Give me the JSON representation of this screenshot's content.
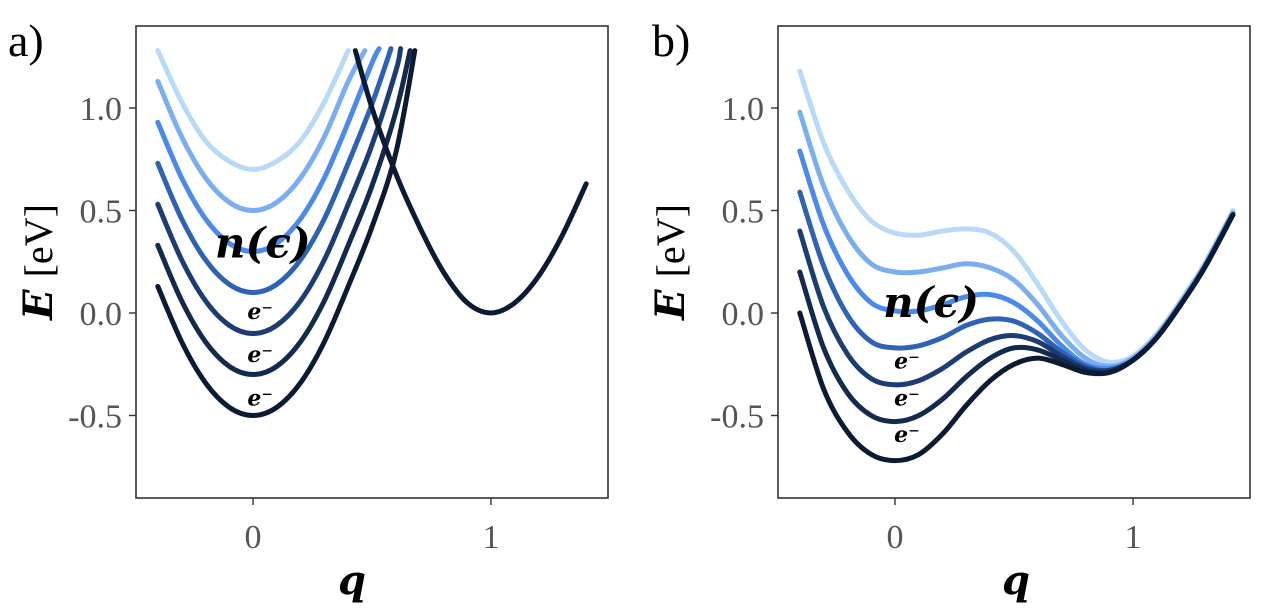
{
  "chart_data": [
    {
      "type": "line",
      "panel_label": "a)",
      "xlabel_var": "q",
      "ylabel_var": "E",
      "ylabel_unit": "[eV]",
      "xlim": [
        -0.5,
        1.5
      ],
      "ylim": [
        -0.9,
        1.3
      ],
      "x_ticks": [
        0,
        1
      ],
      "x_tick_labels": [
        "0",
        "1"
      ],
      "y_ticks": [
        1.0,
        0.5,
        0.0,
        -0.5
      ],
      "y_tick_labels": [
        "1.0",
        "0.5",
        "0.0",
        "-0.5"
      ],
      "colors": [
        "#0c1b33",
        "#13294d",
        "#1d3c74",
        "#2e62b3",
        "#4a8aeb",
        "#7aaeef",
        "#b8d9f7"
      ],
      "series": [
        {
          "color": "#b8d9f7",
          "x": [
            -0.4,
            -0.3,
            -0.2,
            -0.1,
            0,
            0.1,
            0.2,
            0.3,
            0.4
          ],
          "y": [
            1.28,
            1.03,
            0.84,
            0.74,
            0.7,
            0.74,
            0.84,
            1.03,
            1.28
          ]
        },
        {
          "color": "#7aaeef",
          "x": [
            -0.4,
            -0.3,
            -0.2,
            -0.1,
            0,
            0.1,
            0.2,
            0.3,
            0.4,
            0.47
          ],
          "y": [
            1.13,
            0.86,
            0.66,
            0.54,
            0.5,
            0.54,
            0.66,
            0.86,
            1.13,
            1.28
          ]
        },
        {
          "color": "#4a8aeb",
          "x": [
            -0.4,
            -0.3,
            -0.2,
            -0.1,
            0,
            0.1,
            0.2,
            0.3,
            0.4,
            0.5,
            0.53
          ],
          "y": [
            0.93,
            0.66,
            0.46,
            0.34,
            0.3,
            0.34,
            0.46,
            0.66,
            0.93,
            1.22,
            1.29
          ]
        },
        {
          "color": "#2e62b3",
          "x": [
            -0.4,
            -0.3,
            -0.2,
            -0.1,
            0,
            0.1,
            0.2,
            0.3,
            0.4,
            0.5,
            0.58
          ],
          "y": [
            0.73,
            0.46,
            0.26,
            0.14,
            0.1,
            0.14,
            0.26,
            0.46,
            0.73,
            1.02,
            1.29
          ]
        },
        {
          "color": "#1d3c74",
          "x": [
            -0.4,
            -0.3,
            -0.2,
            -0.1,
            0,
            0.1,
            0.2,
            0.3,
            0.4,
            0.5,
            0.6,
            0.62
          ],
          "y": [
            0.53,
            0.26,
            0.06,
            -0.06,
            -0.1,
            -0.06,
            0.06,
            0.26,
            0.53,
            0.82,
            1.18,
            1.29
          ]
        },
        {
          "color": "#13294d",
          "x": [
            -0.4,
            -0.3,
            -0.2,
            -0.1,
            0,
            0.1,
            0.2,
            0.3,
            0.4,
            0.5,
            0.6,
            0.66
          ],
          "y": [
            0.33,
            0.06,
            -0.14,
            -0.26,
            -0.3,
            -0.26,
            -0.14,
            0.06,
            0.33,
            0.62,
            0.98,
            1.28
          ]
        },
        {
          "color": "#0c1b33",
          "x": [
            -0.4,
            -0.3,
            -0.2,
            -0.1,
            0,
            0.1,
            0.2,
            0.3,
            0.4,
            0.5,
            0.6,
            0.68
          ],
          "y": [
            0.13,
            -0.14,
            -0.34,
            -0.46,
            -0.5,
            -0.46,
            -0.34,
            -0.14,
            0.13,
            0.42,
            0.78,
            1.28
          ]
        },
        {
          "color": "#0c1b33",
          "x": [
            0.43,
            0.5,
            0.6,
            0.7,
            0.8,
            0.9,
            1.0,
            1.1,
            1.2,
            1.3,
            1.4
          ],
          "y": [
            1.28,
            1.0,
            0.68,
            0.42,
            0.2,
            0.05,
            0.0,
            0.05,
            0.18,
            0.38,
            0.63
          ]
        }
      ],
      "annotations": [
        {
          "text": "n(ϵ)",
          "x": -0.16,
          "y": 0.27,
          "size": "big"
        },
        {
          "text": "e⁻",
          "x": 0.03,
          "y": -0.03,
          "size": "small"
        },
        {
          "text": "e⁻",
          "x": 0.03,
          "y": -0.24,
          "size": "small"
        },
        {
          "text": "e⁻",
          "x": 0.03,
          "y": -0.45,
          "size": "small"
        }
      ]
    },
    {
      "type": "line",
      "panel_label": "b)",
      "xlabel_var": "q",
      "ylabel_var": "E",
      "ylabel_unit": "[eV]",
      "xlim": [
        -0.5,
        1.5
      ],
      "ylim": [
        -0.9,
        1.3
      ],
      "x_ticks": [
        0,
        1
      ],
      "x_tick_labels": [
        "0",
        "1"
      ],
      "y_ticks": [
        1.0,
        0.5,
        0.0,
        -0.5
      ],
      "y_tick_labels": [
        "1.0",
        "0.5",
        "0.0",
        "-0.5"
      ],
      "series": [
        {
          "color": "#b8d9f7",
          "x": [
            -0.4,
            -0.3,
            -0.2,
            -0.1,
            0.0,
            0.1,
            0.2,
            0.3,
            0.4,
            0.5,
            0.6,
            0.7,
            0.8,
            0.9,
            1.0,
            1.1,
            1.2,
            1.3,
            1.42
          ],
          "y": [
            1.18,
            0.83,
            0.6,
            0.45,
            0.39,
            0.38,
            0.4,
            0.41,
            0.39,
            0.3,
            0.14,
            -0.04,
            -0.18,
            -0.24,
            -0.21,
            -0.1,
            0.06,
            0.24,
            0.5
          ]
        },
        {
          "color": "#7aaeef",
          "x": [
            -0.4,
            -0.3,
            -0.2,
            -0.1,
            0.0,
            0.1,
            0.2,
            0.3,
            0.4,
            0.5,
            0.6,
            0.7,
            0.8,
            0.9,
            1.0,
            1.1,
            1.2,
            1.3,
            1.42
          ],
          "y": [
            0.98,
            0.62,
            0.38,
            0.24,
            0.2,
            0.2,
            0.22,
            0.24,
            0.22,
            0.16,
            0.04,
            -0.11,
            -0.22,
            -0.26,
            -0.22,
            -0.11,
            0.05,
            0.23,
            0.49
          ]
        },
        {
          "color": "#4a8aeb",
          "x": [
            -0.4,
            -0.3,
            -0.2,
            -0.1,
            0.0,
            0.1,
            0.2,
            0.3,
            0.4,
            0.5,
            0.6,
            0.7,
            0.8,
            0.9,
            1.0,
            1.1,
            1.2,
            1.3,
            1.42
          ],
          "y": [
            0.79,
            0.43,
            0.19,
            0.05,
            0.01,
            0.01,
            0.04,
            0.08,
            0.09,
            0.05,
            -0.04,
            -0.16,
            -0.25,
            -0.27,
            -0.23,
            -0.12,
            0.04,
            0.22,
            0.48
          ]
        },
        {
          "color": "#2e62b3",
          "x": [
            -0.4,
            -0.3,
            -0.2,
            -0.1,
            0.0,
            0.1,
            0.2,
            0.3,
            0.4,
            0.5,
            0.6,
            0.7,
            0.8,
            0.9,
            1.0,
            1.1,
            1.2,
            1.3,
            1.42
          ],
          "y": [
            0.59,
            0.23,
            -0.01,
            -0.14,
            -0.17,
            -0.16,
            -0.12,
            -0.06,
            -0.03,
            -0.04,
            -0.1,
            -0.19,
            -0.26,
            -0.28,
            -0.23,
            -0.12,
            0.04,
            0.22,
            0.48
          ]
        },
        {
          "color": "#1d3c74",
          "x": [
            -0.4,
            -0.3,
            -0.2,
            -0.1,
            0.0,
            0.1,
            0.2,
            0.3,
            0.4,
            0.5,
            0.6,
            0.7,
            0.8,
            0.9,
            1.0,
            1.1,
            1.2,
            1.3,
            1.42
          ],
          "y": [
            0.4,
            0.03,
            -0.2,
            -0.32,
            -0.35,
            -0.33,
            -0.27,
            -0.19,
            -0.13,
            -0.11,
            -0.14,
            -0.21,
            -0.27,
            -0.28,
            -0.23,
            -0.12,
            0.04,
            0.22,
            0.48
          ]
        },
        {
          "color": "#13294d",
          "x": [
            -0.4,
            -0.3,
            -0.2,
            -0.1,
            0.0,
            0.1,
            0.2,
            0.3,
            0.4,
            0.5,
            0.6,
            0.7,
            0.8,
            0.9,
            1.0,
            1.1,
            1.2,
            1.3,
            1.42
          ],
          "y": [
            0.2,
            -0.17,
            -0.39,
            -0.5,
            -0.53,
            -0.5,
            -0.42,
            -0.31,
            -0.22,
            -0.17,
            -0.18,
            -0.23,
            -0.28,
            -0.29,
            -0.23,
            -0.12,
            0.04,
            0.22,
            0.48
          ]
        },
        {
          "color": "#0c1b33",
          "x": [
            -0.4,
            -0.3,
            -0.2,
            -0.1,
            0.0,
            0.1,
            0.2,
            0.3,
            0.4,
            0.5,
            0.6,
            0.7,
            0.8,
            0.9,
            1.0,
            1.1,
            1.2,
            1.3,
            1.42
          ],
          "y": [
            0.0,
            -0.37,
            -0.58,
            -0.69,
            -0.72,
            -0.69,
            -0.59,
            -0.45,
            -0.33,
            -0.25,
            -0.22,
            -0.25,
            -0.29,
            -0.29,
            -0.23,
            -0.12,
            0.04,
            0.22,
            0.48
          ]
        }
      ],
      "annotations": [
        {
          "text": "n(ϵ)",
          "x": -0.05,
          "y": -0.02,
          "size": "big"
        },
        {
          "text": "e⁻",
          "x": 0.05,
          "y": -0.27,
          "size": "small"
        },
        {
          "text": "e⁻",
          "x": 0.05,
          "y": -0.45,
          "size": "small"
        },
        {
          "text": "e⁻",
          "x": 0.05,
          "y": -0.63,
          "size": "small"
        }
      ]
    }
  ]
}
